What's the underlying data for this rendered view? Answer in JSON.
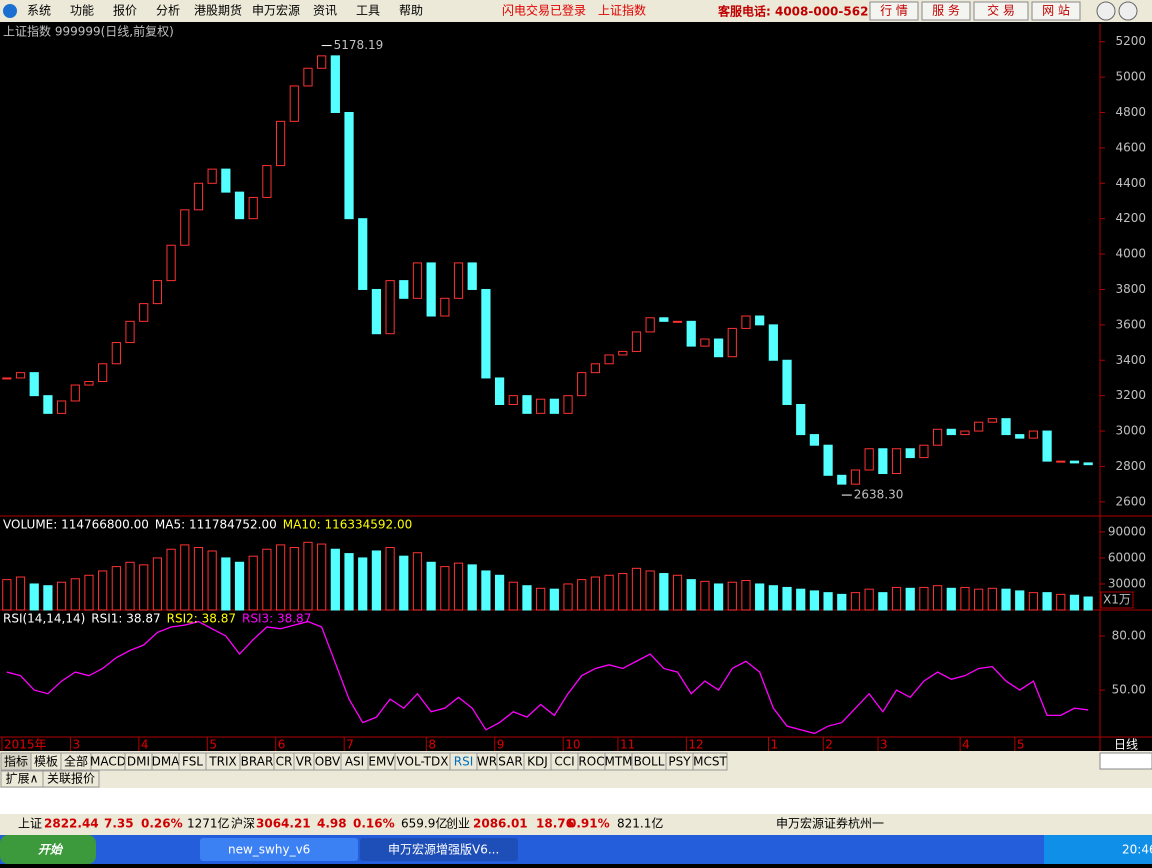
{
  "menu": [
    "系统",
    "功能",
    "报价",
    "分析",
    "港股期货",
    "申万宏源",
    "资讯",
    "工具",
    "帮助"
  ],
  "top_status": [
    "闪电交易已登录",
    "上证指数"
  ],
  "hotline": "客服电话: 4008-000-562",
  "top_buttons": [
    "行 情",
    "服 务",
    "交 易",
    "网 站"
  ],
  "chart_data": [
    {
      "type": "candlestick",
      "title": "上证指数 999999(日线,前复权)",
      "values": [
        3300,
        3330,
        3200,
        3100,
        3170,
        3260,
        3280,
        3380,
        3500,
        3620,
        3720,
        3850,
        4050,
        4250,
        4400,
        4480,
        4350,
        4200,
        4320,
        4500,
        4750,
        4950,
        5050,
        5120,
        4800,
        4200,
        3800,
        3550,
        3850,
        3750,
        3950,
        3650,
        3750,
        3950,
        3800,
        3300,
        3150,
        3200,
        3100,
        3180,
        3100,
        3200,
        3330,
        3380,
        3430,
        3450,
        3560,
        3640,
        3620,
        3620,
        3480,
        3520,
        3420,
        3580,
        3650,
        3600,
        3400,
        3150,
        2980,
        2920,
        2750,
        2700,
        2780,
        2900,
        2760,
        2900,
        2850,
        2920,
        3010,
        2980,
        3000,
        3050,
        3070,
        2980,
        2960,
        3000,
        2830,
        2830,
        2820,
        2810
      ],
      "up_color": "#ff3232",
      "down_color": "#54ffff",
      "ylim": [
        2520,
        5300
      ],
      "yticks": [
        2600,
        2800,
        3000,
        3200,
        3400,
        3600,
        3800,
        4000,
        4200,
        4400,
        4600,
        4800,
        5000,
        5200
      ],
      "annotations": [
        {
          "label": "5178.19",
          "value": 5178.19,
          "index": 23
        },
        {
          "label": "2638.30",
          "value": 2638.3,
          "index": 61
        }
      ]
    },
    {
      "type": "bar",
      "title_parts": [
        "VOLUME: 114766800.00",
        "MA5: 111784752.00",
        "MA10: 116334592.00"
      ],
      "title_colors": [
        "#ffffff",
        "#ffffff",
        "#ffff00"
      ],
      "values": [
        35000,
        38000,
        30000,
        28000,
        32000,
        36000,
        40000,
        45000,
        50000,
        55000,
        52000,
        60000,
        70000,
        75000,
        72000,
        68000,
        60000,
        55000,
        62000,
        70000,
        75000,
        72000,
        78000,
        76000,
        70000,
        65000,
        60000,
        68000,
        72000,
        62000,
        66000,
        55000,
        50000,
        54000,
        52000,
        45000,
        40000,
        32000,
        28000,
        25000,
        24000,
        30000,
        35000,
        38000,
        40000,
        42000,
        48000,
        45000,
        42000,
        40000,
        35000,
        33000,
        30000,
        32000,
        34000,
        30000,
        28000,
        26000,
        24000,
        22000,
        20000,
        18000,
        20000,
        24000,
        20000,
        26000,
        25000,
        26000,
        28000,
        25000,
        26000,
        24000,
        25000,
        24000,
        22000,
        20000,
        20000,
        18000,
        17000,
        15000
      ],
      "ylim": [
        0,
        106000
      ],
      "yticks": [
        30000,
        60000,
        90000
      ],
      "unit": "X1万"
    },
    {
      "type": "line",
      "title_parts": [
        "RSI(14,14,14)",
        "RSI1: 38.87",
        "RSI2: 38.87",
        "RSI3: 38.87"
      ],
      "title_colors": [
        "#ffffff",
        "#ffffff",
        "#ffff00",
        "#ff00ff"
      ],
      "values": [
        60,
        58,
        50,
        48,
        55,
        60,
        58,
        62,
        68,
        72,
        75,
        82,
        85,
        86,
        88,
        84,
        80,
        70,
        78,
        85,
        84,
        86,
        88,
        85,
        65,
        45,
        32,
        35,
        45,
        40,
        48,
        38,
        40,
        46,
        40,
        28,
        32,
        38,
        35,
        42,
        36,
        48,
        58,
        62,
        64,
        62,
        66,
        70,
        62,
        60,
        48,
        55,
        50,
        62,
        66,
        60,
        40,
        30,
        28,
        26,
        30,
        32,
        40,
        48,
        38,
        50,
        46,
        55,
        60,
        56,
        58,
        62,
        63,
        55,
        50,
        55,
        36,
        36,
        40,
        39
      ],
      "color": "#ff00ff",
      "ylim": [
        24,
        93.3
      ],
      "yticks": [
        {
          "value": 50,
          "label": "50.00"
        },
        {
          "value": 80,
          "label": "80.00"
        }
      ]
    }
  ],
  "x_labels": [
    {
      "label": "2015年",
      "index": 0
    },
    {
      "label": "3",
      "index": 5
    },
    {
      "label": "4",
      "index": 10
    },
    {
      "label": "5",
      "index": 15
    },
    {
      "label": "6",
      "index": 20
    },
    {
      "label": "7",
      "index": 25
    },
    {
      "label": "8",
      "index": 31
    },
    {
      "label": "9",
      "index": 36
    },
    {
      "label": "10",
      "index": 41
    },
    {
      "label": "11",
      "index": 45
    },
    {
      "label": "12",
      "index": 50
    },
    {
      "label": "1",
      "index": 56
    },
    {
      "label": "2",
      "index": 60
    },
    {
      "label": "3",
      "index": 64
    },
    {
      "label": "4",
      "index": 70
    },
    {
      "label": "5",
      "index": 74
    }
  ],
  "period": "日线",
  "tabs": [
    "指标",
    "模板",
    "全部",
    "MACD",
    "DMI",
    "DMA",
    "FSL",
    "TRIX",
    "BRAR",
    "CR",
    "VR",
    "OBV",
    "ASI",
    "EMV",
    "VOL-TDX",
    "RSI",
    "WR",
    "SAR",
    "KDJ",
    "CCI",
    "ROC",
    "MTM",
    "BOLL",
    "PSY",
    "MCST"
  ],
  "subtabs": [
    "扩展∧",
    "关联报价"
  ],
  "status_bar": [
    "上证",
    "2822.44",
    "7.35",
    "0.26%",
    "1271亿",
    "沪深",
    "3064.21",
    "4.98",
    "0.16%",
    "659.9亿",
    "创业",
    "2086.01",
    "18.76",
    "0.91%",
    "821.1亿",
    "申万宏源证券杭州一"
  ],
  "status_colors": [
    "#000000",
    "#d00000",
    "#d00000",
    "#d00000",
    "#000000",
    "#000000",
    "#d00000",
    "#d00000",
    "#d00000",
    "#000000",
    "#000000",
    "#d00000",
    "#d00000",
    "#d00000",
    "#000000",
    "#000000"
  ],
  "taskbar": {
    "start": "开始",
    "tasks": [
      "new_swhy_v6",
      "申万宏源增强版V6..."
    ],
    "clock": "20:46"
  }
}
